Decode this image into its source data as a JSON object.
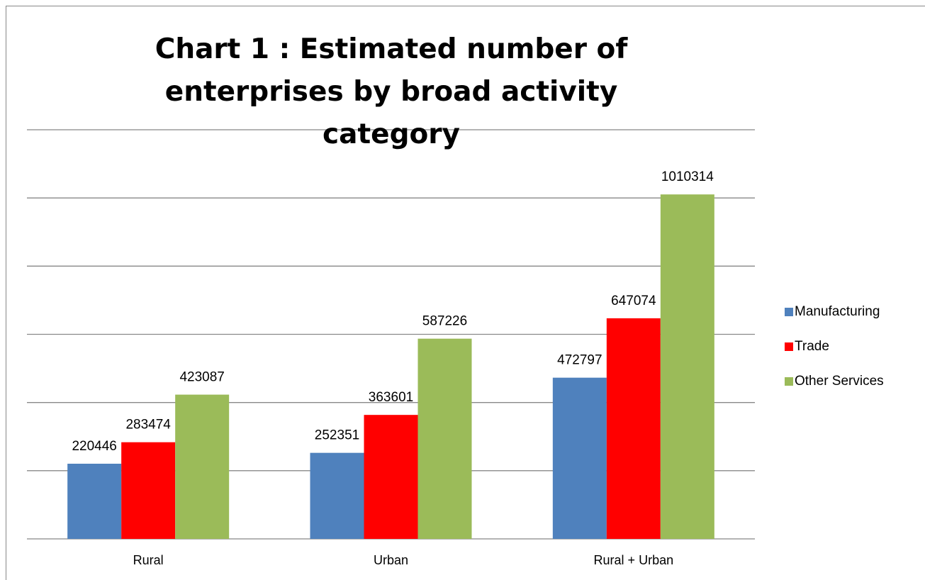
{
  "chart_data": {
    "type": "bar",
    "title": "Chart 1 : Estimated number of enterprises by broad activity category",
    "categories": [
      "Rural",
      "Urban",
      "Rural + Urban"
    ],
    "series": [
      {
        "name": "Manufacturing",
        "color": "#4f81bd",
        "values": [
          220446,
          252351,
          472797
        ]
      },
      {
        "name": "Trade",
        "color": "#ff0000",
        "values": [
          283474,
          363601,
          647074
        ]
      },
      {
        "name": "Other Services",
        "color": "#9bbb59",
        "values": [
          423087,
          587226,
          1010314
        ]
      }
    ],
    "ylim": [
      0,
      1200000
    ],
    "yticks": [
      0,
      200000,
      400000,
      600000,
      800000,
      1000000,
      1200000
    ],
    "grid": true,
    "legend": "right"
  }
}
